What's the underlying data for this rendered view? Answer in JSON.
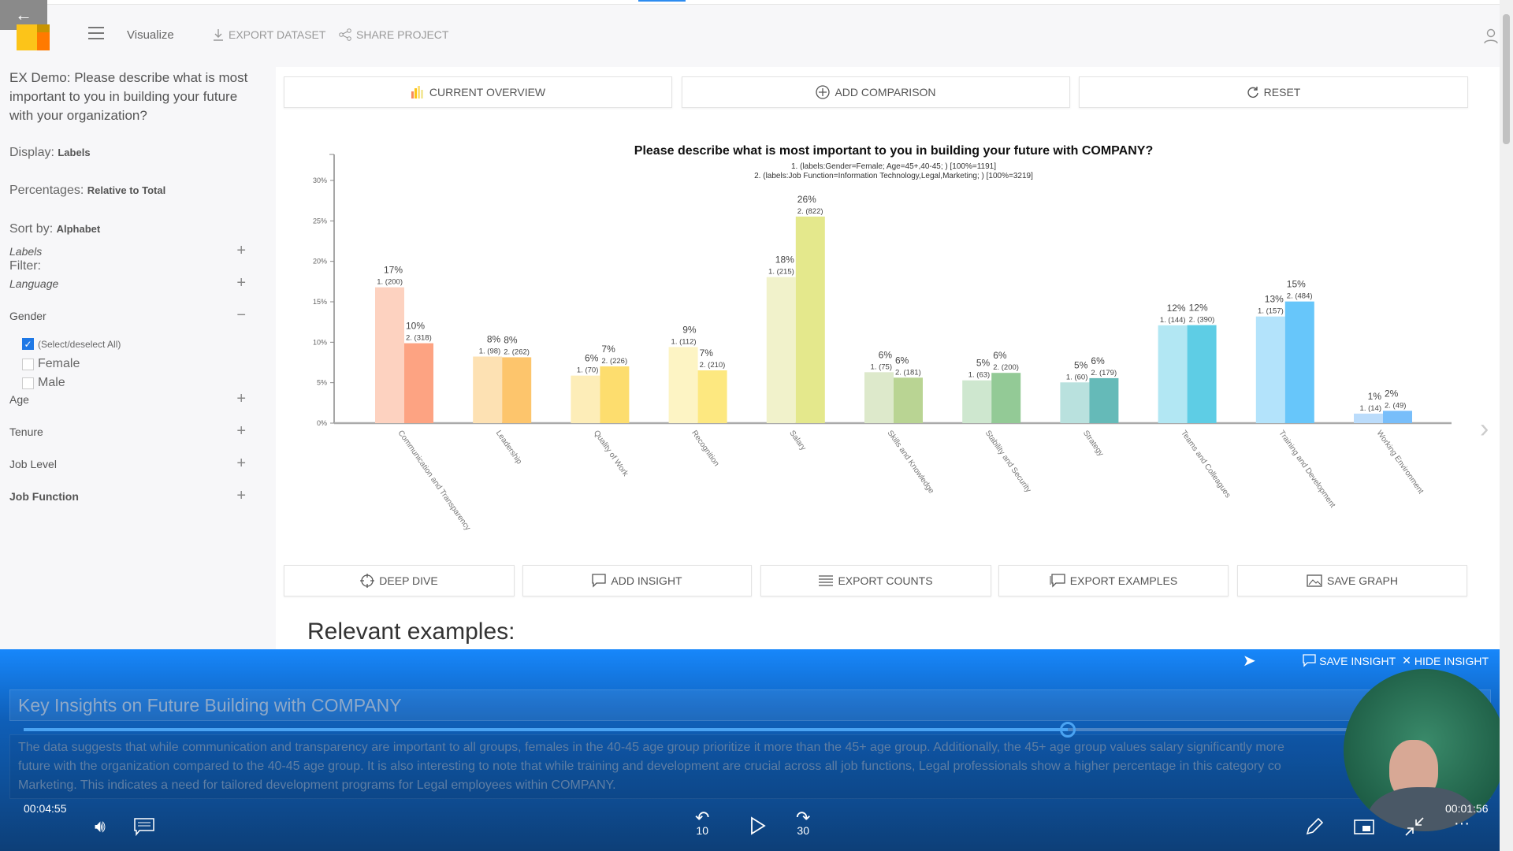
{
  "header": {
    "back_icon": "arrow-left-icon",
    "menu_icon": "hamburger-icon",
    "title": "Visualize",
    "export_dataset": "EXPORT DATASET",
    "share_project": "SHARE PROJECT",
    "user_icon": "user-icon",
    "logo_colors": [
      "#fcc419",
      "#ff7a00",
      "#c89400"
    ]
  },
  "sidebar": {
    "question": "EX Demo: Please describe what is most important to you in building your future with your organization?",
    "display_label": "Display:",
    "display_value": "Labels",
    "percent_label": "Percentages:",
    "percent_value": "Relative to Total",
    "sort_label": "Sort by:",
    "sort_value": "Alphabet",
    "filter_label": "Filter:",
    "filters": [
      {
        "label": "Labels",
        "state": "+"
      },
      {
        "label": "Language",
        "state": "+"
      },
      {
        "label": "Gender",
        "state": "−"
      },
      {
        "label": "Age",
        "state": "+"
      },
      {
        "label": "Tenure",
        "state": "+"
      },
      {
        "label": "Job Level",
        "state": "+"
      },
      {
        "label": "Job Function",
        "state": "+"
      }
    ],
    "gender_options": [
      {
        "label": "(Select/deselect All)",
        "checked": true
      },
      {
        "label": "Female",
        "checked": false
      },
      {
        "label": "Male",
        "checked": false
      }
    ]
  },
  "toolbar": {
    "current_overview": "CURRENT OVERVIEW",
    "add_comparison": "ADD COMPARISON",
    "reset": "RESET"
  },
  "actions": {
    "deep_dive": "DEEP DIVE",
    "add_insight": "ADD INSIGHT",
    "export_counts": "EXPORT COUNTS",
    "export_examples": "EXPORT EXAMPLES",
    "save_graph": "SAVE GRAPH"
  },
  "relevant_examples": "Relevant examples:",
  "chart_data": {
    "type": "bar",
    "title": "Please describe what is most important to you in building your future with COMPANY?",
    "subtitle": [
      "1. (labels:Gender=Female; Age=45+,40-45; ) [100%=1191]",
      "2. (labels:Job Function=Information Technology,Legal,Marketing; ) [100%=3219]"
    ],
    "totals": [
      1191,
      3219
    ],
    "ylim": [
      0,
      30
    ],
    "yticks": [
      "0%",
      "5%",
      "10%",
      "15%",
      "20%",
      "25%",
      "30%"
    ],
    "categories": [
      "Communication and Transparency",
      "Leadership",
      "Quality of Work",
      "Recognition",
      "Salary",
      "Skills and Knowledge",
      "Stability and Security",
      "Strategy",
      "Teams and Colleagues",
      "Training and Development",
      "Working Environment"
    ],
    "series": [
      {
        "pct": [
          17,
          8,
          6,
          9,
          18,
          6,
          5,
          5,
          12,
          13,
          1
        ],
        "counts": [
          200,
          98,
          70,
          112,
          215,
          75,
          63,
          60,
          144,
          157,
          14
        ],
        "colors": [
          "#fdd2c0",
          "#fde1b3",
          "#fdedb8",
          "#fdf4c4",
          "#f1f2cb",
          "#dde9cb",
          "#cee7cf",
          "#b9e1de",
          "#b2e7f3",
          "#b3e3fb",
          "#bbdcfb"
        ]
      },
      {
        "pct": [
          10,
          8,
          7,
          7,
          26,
          6,
          6,
          6,
          12,
          15,
          2
        ],
        "counts": [
          318,
          262,
          226,
          210,
          822,
          181,
          200,
          179,
          390,
          484,
          49
        ],
        "colors": [
          "#fda382",
          "#fdc56c",
          "#fddd6e",
          "#fde880",
          "#e4e88c",
          "#b9d493",
          "#93ca96",
          "#65bab8",
          "#5ecde5",
          "#67c6fa",
          "#78befa"
        ]
      }
    ],
    "grid": false
  },
  "insight": {
    "save": "SAVE INSIGHT",
    "hide": "HIDE INSIGHT",
    "title": "Key Insights on Future Building with COMPANY",
    "lines": [
      "The data suggests that while communication and transparency are important to all groups, females in the 40-45 age group prioritize it more than the 45+ age group. Additionally, the 45+ age group values salary significantly more",
      "future with the organization compared to the 40-45 age group. It is also interesting to note that while training and development are crucial across all job functions, Legal professionals show a higher percentage in this category co",
      "Marketing. This indicates a need for tailored development programs for Legal employees within COMPANY."
    ]
  },
  "player": {
    "elapsed": "00:04:55",
    "remaining": "00:01:56",
    "progress_fraction": 0.72,
    "rewind": "10",
    "forward": "30"
  }
}
